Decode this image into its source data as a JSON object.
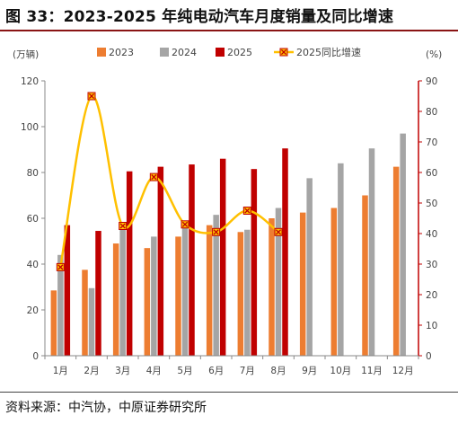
{
  "figure": {
    "title": "图 33：2023-2025 年纯电动汽车月度销量及同比增速",
    "source": "资料来源：中汽协，中原证券研究所"
  },
  "chart_data": {
    "type": "bar",
    "categories": [
      "1月",
      "2月",
      "3月",
      "4月",
      "5月",
      "6月",
      "7月",
      "8月",
      "9月",
      "10月",
      "11月",
      "12月"
    ],
    "series": [
      {
        "name": "2023",
        "type": "bar",
        "axis": "left",
        "color": "#ED7D31",
        "values": [
          28.5,
          37.5,
          49,
          47,
          52,
          57,
          54,
          60,
          62.5,
          64.5,
          70,
          82.5
        ]
      },
      {
        "name": "2024",
        "type": "bar",
        "axis": "left",
        "color": "#A5A5A5",
        "values": [
          44,
          29.5,
          55,
          52,
          58,
          61.5,
          55,
          64.5,
          77.5,
          84,
          90.5,
          97
        ]
      },
      {
        "name": "2025",
        "type": "bar",
        "axis": "left",
        "color": "#C00000",
        "values": [
          57,
          54.5,
          80.5,
          82.5,
          83.5,
          86,
          81.5,
          90.5,
          null,
          null,
          null,
          null
        ]
      },
      {
        "name": "2025同比增速",
        "type": "line",
        "axis": "right",
        "color": "#FFC000",
        "marker_color": "#C00000",
        "values": [
          29,
          85,
          42.5,
          58.5,
          43,
          40.5,
          47.5,
          40.5,
          null,
          null,
          null,
          null
        ]
      }
    ],
    "left_axis": {
      "unit": "(万辆)",
      "ylim": [
        0,
        120
      ],
      "ticks": [
        0,
        20,
        40,
        60,
        80,
        100,
        120
      ]
    },
    "right_axis": {
      "unit": "(%)",
      "ylim": [
        0,
        90
      ],
      "ticks": [
        0,
        10,
        20,
        30,
        40,
        50,
        60,
        70,
        80,
        90
      ]
    },
    "grid": false,
    "legend_position": "top"
  }
}
